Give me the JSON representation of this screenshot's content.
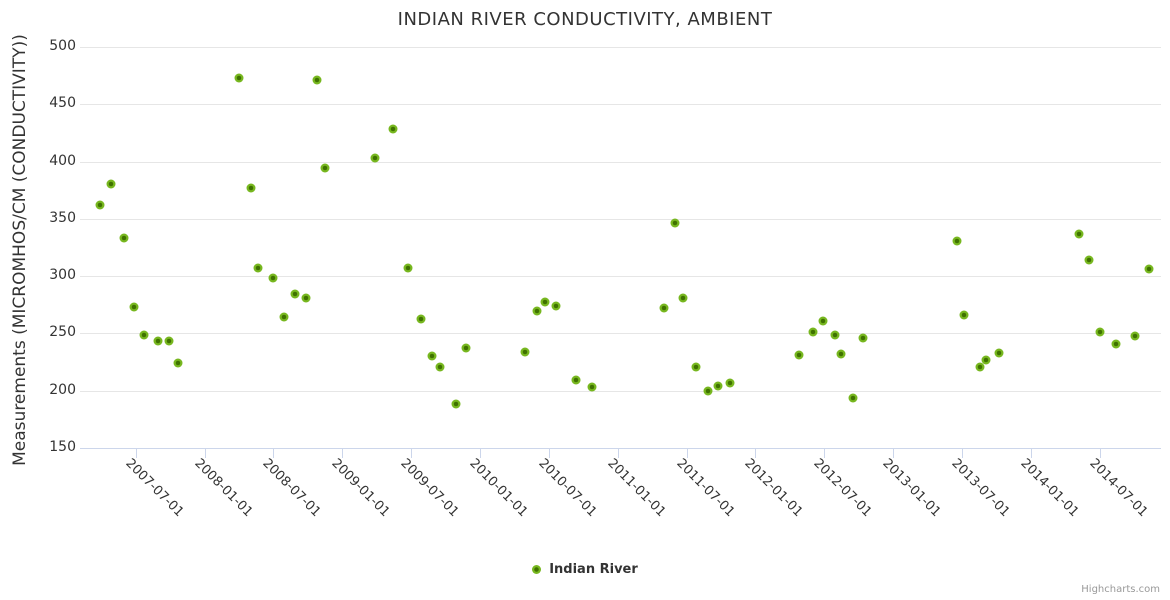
{
  "chart": {
    "credits": "Highcharts.com"
  },
  "chart_data": {
    "type": "scatter",
    "title": "INDIAN RIVER CONDUCTIVITY, AMBIENT",
    "xlabel": "",
    "ylabel": "Measurements (MICROMHOS/CM (CONDUCTIVITY))",
    "ylim": [
      150,
      500
    ],
    "ytick_interval": 50,
    "grid": true,
    "legend_position": "bottom-center",
    "xticks": [
      "2007-07-01",
      "2008-01-01",
      "2008-07-01",
      "2009-01-01",
      "2009-07-01",
      "2010-01-01",
      "2010-07-01",
      "2011-01-01",
      "2011-07-01",
      "2012-01-01",
      "2012-07-01",
      "2013-01-01",
      "2013-07-01",
      "2014-01-01",
      "2014-07-01"
    ],
    "colors": {
      "marker": "#77b71f",
      "marker_center": "#3f7200",
      "gridline": "#e6e6e6",
      "axis_line": "#ccd6eb",
      "title_text": "#333333",
      "label_text": "#333333",
      "credits_text": "#999999"
    },
    "series": [
      {
        "name": "Indian River",
        "points": [
          [
            "2007-03-28",
            362
          ],
          [
            "2007-04-26",
            380
          ],
          [
            "2007-05-30",
            333
          ],
          [
            "2007-06-26",
            273
          ],
          [
            "2007-07-22",
            249
          ],
          [
            "2007-08-29",
            243
          ],
          [
            "2007-09-28",
            243
          ],
          [
            "2007-10-23",
            224
          ],
          [
            "2008-04-01",
            473
          ],
          [
            "2008-05-02",
            377
          ],
          [
            "2008-05-22",
            307
          ],
          [
            "2008-06-30",
            298
          ],
          [
            "2008-07-29",
            264
          ],
          [
            "2008-08-27",
            284
          ],
          [
            "2008-09-26",
            281
          ],
          [
            "2008-10-26",
            471
          ],
          [
            "2008-11-17",
            394
          ],
          [
            "2009-03-26",
            403
          ],
          [
            "2009-05-14",
            428
          ],
          [
            "2009-06-22",
            307
          ],
          [
            "2009-07-27",
            263
          ],
          [
            "2009-08-26",
            230
          ],
          [
            "2009-09-16",
            221
          ],
          [
            "2009-10-28",
            188
          ],
          [
            "2009-11-25",
            237
          ],
          [
            "2010-04-29",
            234
          ],
          [
            "2010-06-01",
            270
          ],
          [
            "2010-06-22",
            277
          ],
          [
            "2010-07-19",
            274
          ],
          [
            "2010-09-13",
            209
          ],
          [
            "2010-10-25",
            203
          ],
          [
            "2011-05-01",
            272
          ],
          [
            "2011-05-30",
            346
          ],
          [
            "2011-06-21",
            281
          ],
          [
            "2011-07-25",
            221
          ],
          [
            "2011-08-28",
            200
          ],
          [
            "2011-09-23",
            204
          ],
          [
            "2011-10-25",
            207
          ],
          [
            "2012-04-24",
            231
          ],
          [
            "2012-06-01",
            251
          ],
          [
            "2012-06-27",
            261
          ],
          [
            "2012-07-29",
            249
          ],
          [
            "2012-08-16",
            232
          ],
          [
            "2012-09-16",
            194
          ],
          [
            "2012-10-13",
            246
          ],
          [
            "2013-06-17",
            331
          ],
          [
            "2013-07-05",
            266
          ],
          [
            "2013-08-17",
            221
          ],
          [
            "2013-09-03",
            227
          ],
          [
            "2013-10-08",
            233
          ],
          [
            "2014-05-08",
            337
          ],
          [
            "2014-06-02",
            314
          ],
          [
            "2014-07-01",
            251
          ],
          [
            "2014-08-13",
            241
          ],
          [
            "2014-10-04",
            248
          ],
          [
            "2014-11-10",
            306
          ]
        ]
      }
    ]
  }
}
